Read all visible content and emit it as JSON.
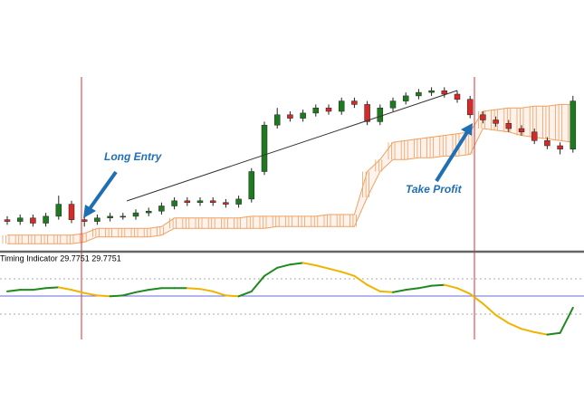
{
  "chart_data": [
    {
      "type": "candlestick",
      "ylim": [
        0,
        100
      ],
      "up_color": "#1e7a1e",
      "down_color": "#d42a2a",
      "cloud_color": "#f0a060",
      "annotations": [
        "Long Entry",
        "Take Profit"
      ],
      "open": [
        17,
        16,
        18,
        15,
        19,
        26,
        17,
        16,
        18,
        19,
        19,
        21,
        22,
        25,
        28,
        27,
        28,
        27,
        26,
        29,
        45,
        72,
        78,
        76,
        79,
        82,
        80,
        86,
        84,
        74,
        82,
        86,
        89,
        91,
        92,
        90,
        87,
        78,
        75,
        73,
        70,
        68,
        63,
        60,
        58
      ],
      "close": [
        16,
        18,
        15,
        19,
        26,
        17,
        16,
        18,
        19,
        19,
        21,
        22,
        25,
        28,
        27,
        28,
        27,
        26,
        29,
        45,
        72,
        78,
        76,
        79,
        82,
        80,
        86,
        84,
        74,
        82,
        86,
        89,
        91,
        92,
        90,
        87,
        78,
        75,
        73,
        70,
        68,
        63,
        60,
        58,
        86
      ],
      "high": [
        19,
        20,
        20,
        21,
        31,
        28,
        19,
        20,
        21,
        21,
        23,
        24,
        27,
        30,
        30,
        30,
        30,
        29,
        31,
        47,
        74,
        82,
        80,
        81,
        84,
        84,
        88,
        88,
        86,
        84,
        88,
        91,
        93,
        94,
        94,
        92,
        89,
        80,
        77,
        75,
        72,
        70,
        65,
        62,
        89
      ],
      "low": [
        14,
        14,
        13,
        13,
        17,
        15,
        13,
        14,
        16,
        17,
        17,
        19,
        20,
        23,
        25,
        25,
        25,
        24,
        24,
        27,
        43,
        70,
        74,
        74,
        77,
        78,
        78,
        82,
        72,
        72,
        80,
        84,
        87,
        89,
        88,
        85,
        76,
        73,
        71,
        68,
        66,
        61,
        58,
        55,
        56
      ],
      "cloud_upper": [
        8,
        8,
        8,
        8,
        8,
        8,
        9,
        12,
        12,
        12,
        12,
        12,
        13,
        18,
        18,
        18,
        18,
        18,
        18,
        19,
        19,
        19,
        19,
        19,
        19,
        20,
        20,
        20,
        45,
        52,
        62,
        63,
        64,
        65,
        66,
        67,
        68,
        80,
        81,
        82,
        82,
        83,
        83,
        84,
        84
      ],
      "cloud_lower": [
        3,
        3,
        3,
        3,
        3,
        3,
        4,
        7,
        7,
        7,
        7,
        7,
        8,
        12,
        12,
        12,
        12,
        12,
        12,
        12,
        12,
        13,
        13,
        13,
        13,
        13,
        13,
        13,
        30,
        45,
        52,
        52,
        53,
        53,
        54,
        54,
        55,
        70,
        69,
        68,
        66,
        65,
        64,
        63,
        62
      ]
    },
    {
      "type": "line",
      "title": "Timing Indicator 29.7751 29.7751",
      "ylim": [
        0,
        100
      ],
      "rise_color": "#1e8a1e",
      "fall_color": "#f0b400",
      "values": [
        59,
        61,
        61,
        63,
        64,
        61,
        57,
        54,
        53,
        54,
        58,
        61,
        63,
        63,
        63,
        62,
        59,
        54,
        53,
        59,
        78,
        88,
        92,
        94,
        91,
        87,
        83,
        78,
        67,
        59,
        58,
        61,
        63,
        66,
        67,
        63,
        56,
        44,
        30,
        20,
        13,
        9,
        6,
        8,
        39
      ]
    }
  ]
}
